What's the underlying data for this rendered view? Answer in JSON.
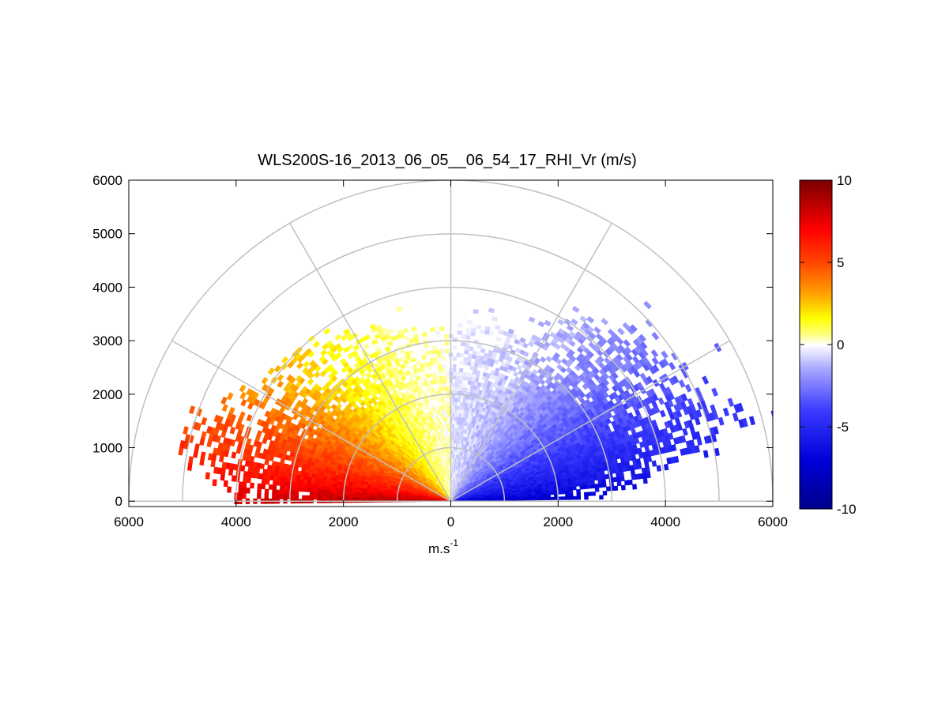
{
  "chart_data": {
    "type": "heatmap",
    "subtype": "polar RHI scan (half disc), colour = radial velocity",
    "title": "WLS200S-16_2013_06_05__06_54_17_RHI_Vr (m/s)",
    "xlabel": "m.s",
    "xlabel_superscript": "-1",
    "ylabel": "",
    "xlim": [
      -6000,
      6000
    ],
    "ylim": [
      -100,
      6000
    ],
    "x_tick_values": [
      -6000,
      -4000,
      -2000,
      0,
      2000,
      4000,
      6000
    ],
    "x_tick_labels": [
      "6000",
      "4000",
      "2000",
      "0",
      "2000",
      "4000",
      "6000"
    ],
    "y_tick_values": [
      0,
      1000,
      2000,
      3000,
      4000,
      5000,
      6000
    ],
    "y_tick_labels": [
      "0",
      "1000",
      "2000",
      "3000",
      "4000",
      "5000",
      "6000"
    ],
    "polar_grid": {
      "range_rings": [
        1000,
        2000,
        3000,
        4000,
        5000,
        6000
      ],
      "spokes_deg": [
        0,
        30,
        60,
        90,
        120,
        150,
        180
      ],
      "color": "#c0c0c0"
    },
    "colorbar": {
      "range": [
        -10,
        10
      ],
      "tick_values": [
        10,
        5,
        0,
        -5,
        -10
      ],
      "tick_labels": [
        "10",
        "5",
        "0",
        "-5",
        "-10"
      ],
      "colormap_stops": [
        {
          "value": -10,
          "color": "#00008c"
        },
        {
          "value": -7,
          "color": "#0000d9"
        },
        {
          "value": -4,
          "color": "#3a3aff"
        },
        {
          "value": -1.5,
          "color": "#a6a6ff"
        },
        {
          "value": -0.4,
          "color": "#e8e8ff"
        },
        {
          "value": 0,
          "color": "#ffffff"
        },
        {
          "value": 0.6,
          "color": "#ffff80"
        },
        {
          "value": 1.6,
          "color": "#ffff00"
        },
        {
          "value": 3,
          "color": "#ffa500"
        },
        {
          "value": 5,
          "color": "#ff4500"
        },
        {
          "value": 7,
          "color": "#ff0000"
        },
        {
          "value": 10,
          "color": "#7a0000"
        }
      ]
    },
    "series": [
      {
        "role": "left side (toward -x)",
        "velocity_near_horizon": 9.5,
        "velocity_near_zenith": 0.3,
        "max_range_by_elevation": [
          {
            "elevation_deg": 2,
            "range_m": 4000
          },
          {
            "elevation_deg": 10,
            "range_m": 5200
          },
          {
            "elevation_deg": 20,
            "range_m": 5000
          },
          {
            "elevation_deg": 30,
            "range_m": 4400
          },
          {
            "elevation_deg": 45,
            "range_m": 4000
          },
          {
            "elevation_deg": 60,
            "range_m": 3600
          },
          {
            "elevation_deg": 75,
            "range_m": 3450
          },
          {
            "elevation_deg": 90,
            "range_m": 3200
          }
        ]
      },
      {
        "role": "right side (toward +x)",
        "velocity_near_horizon": -8,
        "velocity_near_zenith": -0.6,
        "max_range_by_elevation": [
          {
            "elevation_deg": 2,
            "range_m": 3000
          },
          {
            "elevation_deg": 8,
            "range_m": 4200
          },
          {
            "elevation_deg": 15,
            "range_m": 5800
          },
          {
            "elevation_deg": 25,
            "range_m": 5300
          },
          {
            "elevation_deg": 35,
            "range_m": 5000
          },
          {
            "elevation_deg": 50,
            "range_m": 4400
          },
          {
            "elevation_deg": 65,
            "range_m": 3500
          },
          {
            "elevation_deg": 80,
            "range_m": 3350
          },
          {
            "elevation_deg": 90,
            "range_m": 3300
          }
        ]
      }
    ],
    "grid": true,
    "legend": "colorbar-right"
  }
}
